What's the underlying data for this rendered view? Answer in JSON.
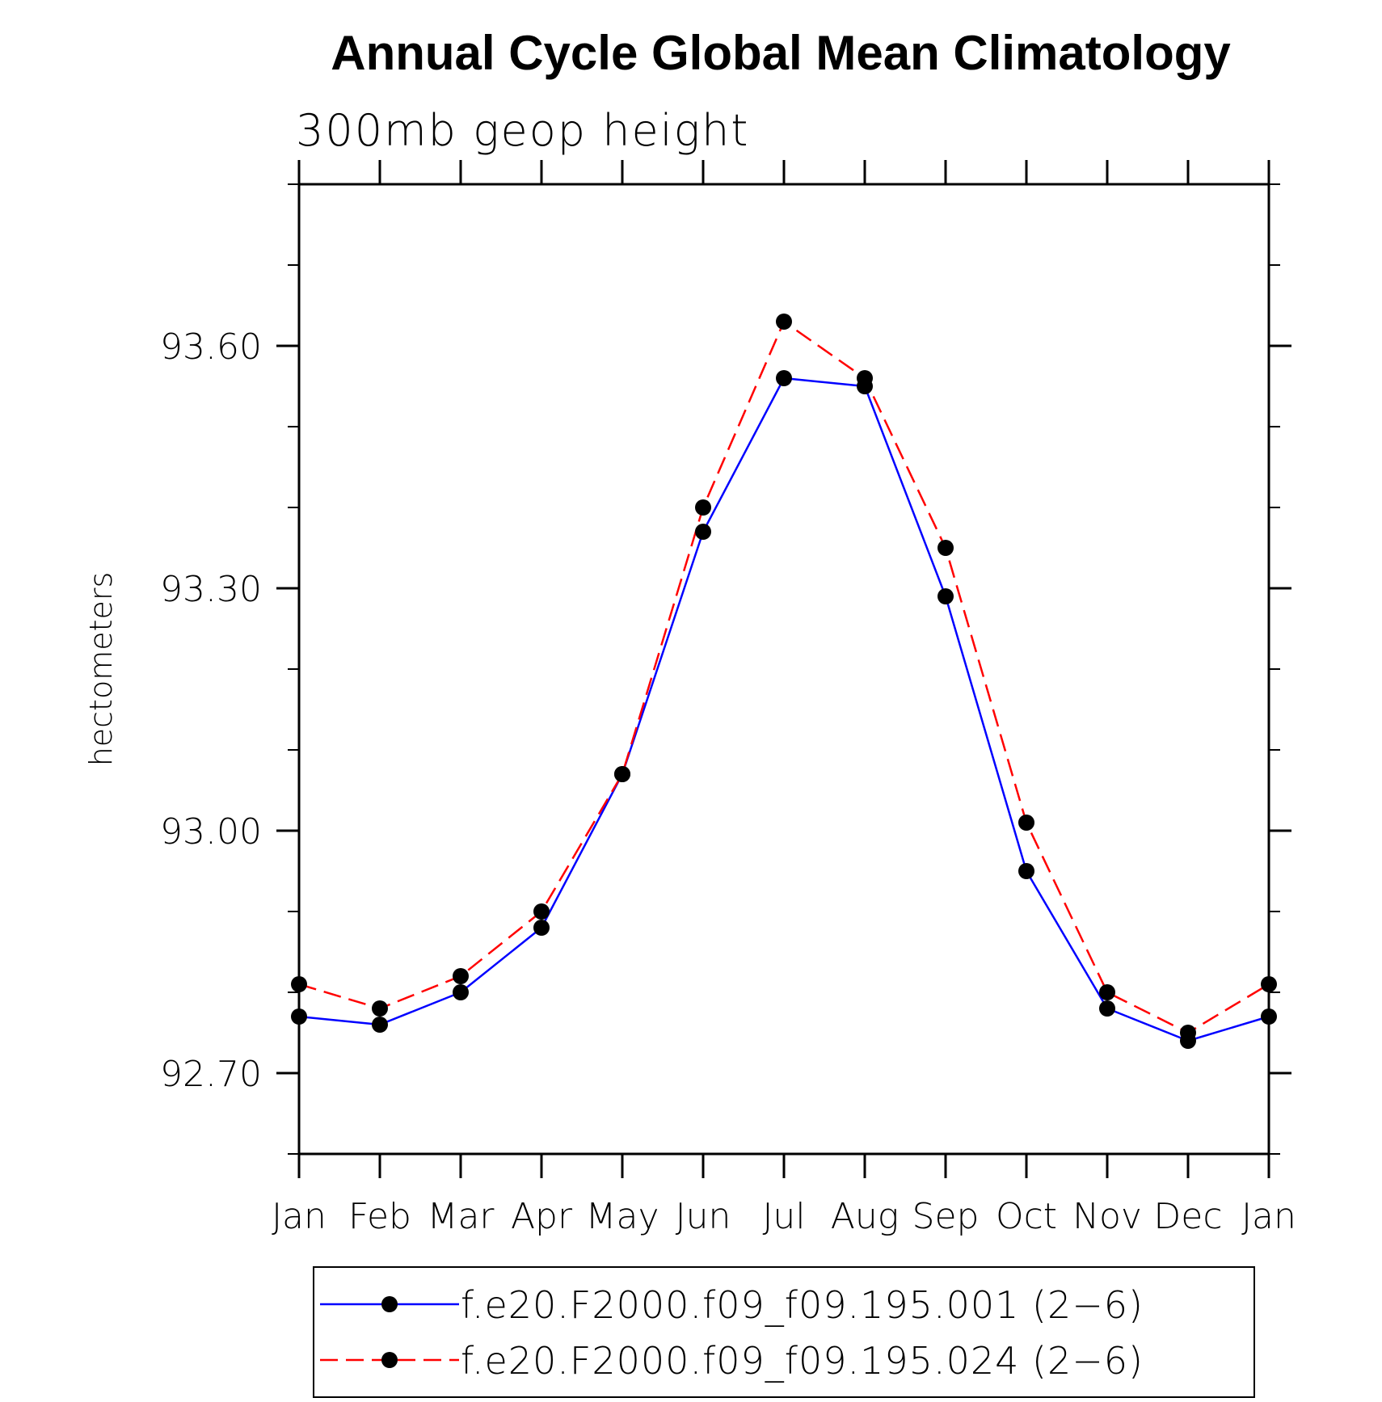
{
  "chart_data": {
    "type": "line",
    "title": "Annual Cycle Global Mean Climatology",
    "subtitle": "300mb geop height",
    "ylabel": "hectometers",
    "xlabel": "",
    "ylim": [
      92.6,
      93.8
    ],
    "yticks": [
      92.7,
      93.0,
      93.3,
      93.6
    ],
    "ytick_labels": [
      "92.70",
      "93.00",
      "93.30",
      "93.60"
    ],
    "categories": [
      "Jan",
      "Feb",
      "Mar",
      "Apr",
      "May",
      "Jun",
      "Jul",
      "Aug",
      "Sep",
      "Oct",
      "Nov",
      "Dec",
      "Jan"
    ],
    "series": [
      {
        "name": "f.e20.F2000.f09_f09.195.001 (2−6)",
        "color": "#0000ff",
        "dash": "solid",
        "marker": "filled-circle",
        "values": [
          92.77,
          92.76,
          92.8,
          92.88,
          93.07,
          93.37,
          93.56,
          93.55,
          93.29,
          92.95,
          92.78,
          92.74,
          92.77
        ]
      },
      {
        "name": "f.e20.F2000.f09_f09.195.024 (2−6)",
        "color": "#ff0000",
        "dash": "dashed",
        "marker": "filled-circle",
        "values": [
          92.81,
          92.78,
          92.82,
          92.9,
          93.07,
          93.4,
          93.63,
          93.56,
          93.35,
          93.01,
          92.8,
          92.75,
          92.81
        ]
      }
    ],
    "grid": false,
    "legend": "bottom"
  }
}
